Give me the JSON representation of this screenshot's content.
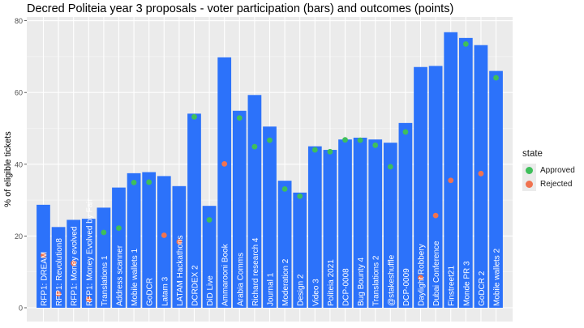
{
  "chart_data": {
    "type": "bar",
    "title": "Decred Politeia year 3 proposals - voter participation (bars) and outcomes (points)",
    "xlabel": "",
    "ylabel": "% of eligible tickets",
    "ylim": [
      -4,
      80
    ],
    "yticks": [
      0,
      20,
      40,
      60,
      80
    ],
    "legend_title": "state",
    "legend": [
      {
        "label": "Approved",
        "color": "#3fbf5b"
      },
      {
        "label": "Rejected",
        "color": "#f07350"
      }
    ],
    "bar_color": "#2c72fa",
    "categories": [
      "RFP1: DREAM",
      "RFP1: Revolution8",
      "RFP1: Money evolved",
      "RFP1: Money Evolved by Fair",
      "Translations 1",
      "Address scanner",
      "Mobile wallets 1",
      "GoDCR",
      "Latam 3",
      "LATAM Hackathons",
      "DCRDEX 2",
      "DiD Live",
      "Ammarooni Book",
      "Arabia Comms",
      "Richard research 4",
      "Journal 1",
      "Moderation 2",
      "Design 2",
      "Video 3",
      "Politeia 2021",
      "DCP-0008",
      "Bug Bounty 4",
      "Translations 2",
      "@stakeshuffle",
      "DCP-0009",
      "Daylight Robbery",
      "Dubai Conference",
      "Finstreet21",
      "Monde PR 3",
      "GoDCR 2",
      "Mobile wallets 2"
    ],
    "series": [
      {
        "name": "participation",
        "values": [
          28.7,
          22.5,
          24.5,
          24.8,
          27.9,
          33.5,
          37.5,
          37.8,
          36.7,
          33.9,
          54.1,
          28.4,
          69.8,
          54.9,
          59.3,
          50.5,
          35.4,
          32.1,
          45.0,
          44.0,
          46.9,
          47.4,
          46.9,
          46.0,
          51.5,
          67.1,
          67.4,
          76.8,
          75.2,
          73.2,
          66.0
        ]
      },
      {
        "name": "approval",
        "values": [
          14.6,
          3.9,
          12.4,
          2.3,
          21.0,
          22.2,
          34.9,
          35.0,
          20.2,
          18.4,
          53.2,
          24.5,
          40.1,
          52.9,
          44.9,
          46.7,
          33.1,
          31.1,
          44.0,
          43.5,
          46.8,
          46.7,
          45.3,
          39.3,
          49.0,
          8.4,
          25.7,
          35.5,
          73.5,
          37.4,
          64.1
        ]
      },
      {
        "name": "state",
        "values": [
          "Rejected",
          "Rejected",
          "Rejected",
          "Rejected",
          "Approved",
          "Approved",
          "Approved",
          "Approved",
          "Rejected",
          "Rejected",
          "Approved",
          "Approved",
          "Rejected",
          "Approved",
          "Approved",
          "Approved",
          "Approved",
          "Approved",
          "Approved",
          "Approved",
          "Approved",
          "Approved",
          "Approved",
          "Approved",
          "Approved",
          "Rejected",
          "Rejected",
          "Rejected",
          "Approved",
          "Rejected",
          "Approved"
        ]
      }
    ]
  }
}
